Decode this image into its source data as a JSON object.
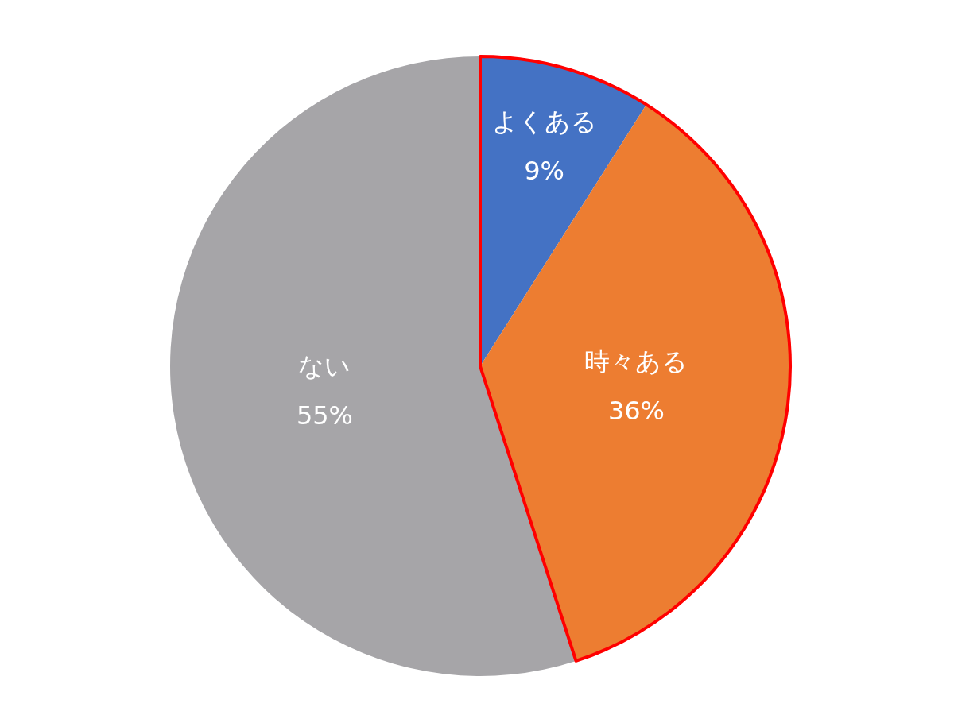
{
  "chart_data": {
    "type": "pie",
    "categories": [
      "よくある",
      "時々ある",
      "ない"
    ],
    "values": [
      9,
      36,
      55
    ],
    "colors": [
      "#4472c4",
      "#ed7d31",
      "#a6a5a8"
    ],
    "value_labels": [
      "9%",
      "36%",
      "55%"
    ]
  }
}
